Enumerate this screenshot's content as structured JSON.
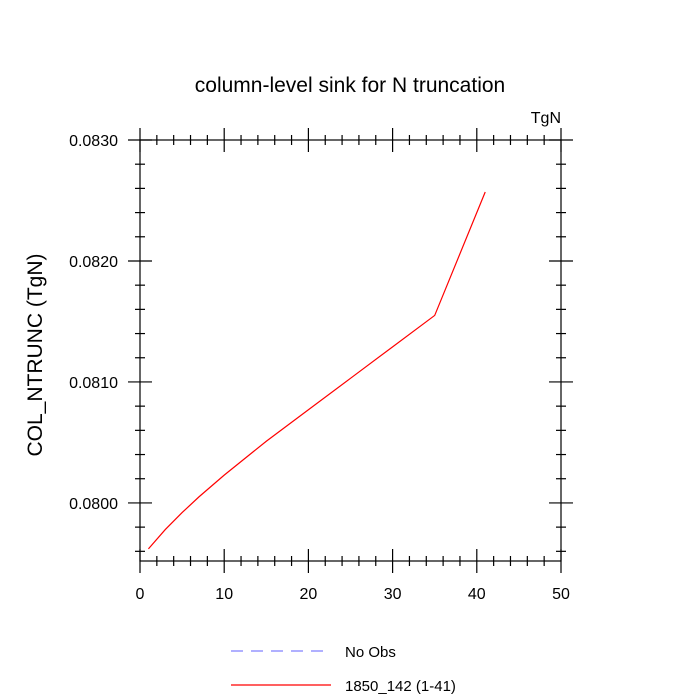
{
  "chart_data": {
    "type": "line",
    "title": "column-level sink for N truncation",
    "units_label": "TgN",
    "ylabel": "COL_NTRUNC  (TgN)",
    "xlabel": "",
    "xlim": [
      0,
      50
    ],
    "ylim": [
      0.07952,
      0.083
    ],
    "x_ticks": [
      0,
      10,
      20,
      30,
      40,
      50
    ],
    "x_tick_labels": [
      "0",
      "10",
      "20",
      "30",
      "40",
      "50"
    ],
    "y_ticks": [
      0.08,
      0.081,
      0.082,
      0.083
    ],
    "y_tick_labels": [
      "0.0800",
      "0.0810",
      "0.0820",
      "0.0830"
    ],
    "grid": false,
    "legend_placement": "bottom-center",
    "series": [
      {
        "name": "No Obs",
        "color": "#8080ff",
        "dash": "dashed",
        "x": [],
        "y": []
      },
      {
        "name": "1850_142 (1-41)",
        "color": "#ff0000",
        "dash": "solid",
        "x": [
          1,
          3,
          5,
          7,
          10,
          15,
          20,
          25,
          30,
          35,
          41
        ],
        "y": [
          0.07962,
          0.07978,
          0.07992,
          0.08005,
          0.08023,
          0.08051,
          0.08077,
          0.08103,
          0.08129,
          0.08155,
          0.08257
        ]
      }
    ]
  }
}
